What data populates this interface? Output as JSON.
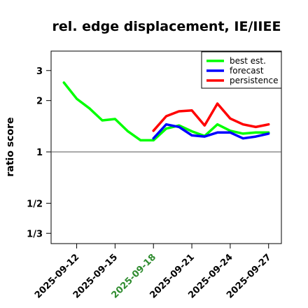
{
  "chart_data": {
    "type": "line",
    "title": "rel. edge displacement, IE/IIEE",
    "ylabel": "ratio score",
    "xlabel": "",
    "y_scale": "log",
    "ylim": [
      0.29,
      3.9
    ],
    "y_ticks": [
      {
        "value": 3,
        "label": "3"
      },
      {
        "value": 2,
        "label": "2"
      },
      {
        "value": 1,
        "label": "1"
      },
      {
        "value": 0.5,
        "label": "1/2"
      },
      {
        "value": 0.3333,
        "label": "1/3"
      }
    ],
    "reference_line": 1,
    "x": [
      "2025-09-11",
      "2025-09-12",
      "2025-09-13",
      "2025-09-14",
      "2025-09-15",
      "2025-09-16",
      "2025-09-17",
      "2025-09-18",
      "2025-09-19",
      "2025-09-20",
      "2025-09-21",
      "2025-09-22",
      "2025-09-23",
      "2025-09-24",
      "2025-09-25",
      "2025-09-26",
      "2025-09-27"
    ],
    "xlim": [
      "2025-09-10",
      "2025-09-28"
    ],
    "x_ticks": [
      {
        "label": "2025-09-12",
        "color": "#000000"
      },
      {
        "label": "2025-09-15",
        "color": "#000000"
      },
      {
        "label": "2025-09-18",
        "color": "#2e8b2e"
      },
      {
        "label": "2025-09-21",
        "color": "#000000"
      },
      {
        "label": "2025-09-24",
        "color": "#000000"
      },
      {
        "label": "2025-09-27",
        "color": "#000000"
      }
    ],
    "legend_position": "top-right",
    "series": [
      {
        "name": "best est.",
        "color": "#00ff00",
        "values": [
          2.55,
          2.05,
          1.8,
          1.53,
          1.56,
          1.32,
          1.17,
          1.17,
          1.37,
          1.43,
          1.32,
          1.24,
          1.45,
          1.33,
          1.28,
          1.3,
          1.3
        ]
      },
      {
        "name": "forecast",
        "color": "#0000ff",
        "values": [
          null,
          null,
          null,
          null,
          null,
          null,
          null,
          1.2,
          1.45,
          1.4,
          1.25,
          1.23,
          1.3,
          1.3,
          1.2,
          1.23,
          1.28
        ]
      },
      {
        "name": "persistence",
        "color": "#ff0000",
        "values": [
          null,
          null,
          null,
          null,
          null,
          null,
          null,
          1.33,
          1.62,
          1.73,
          1.75,
          1.43,
          1.92,
          1.57,
          1.45,
          1.4,
          1.45
        ]
      }
    ]
  }
}
